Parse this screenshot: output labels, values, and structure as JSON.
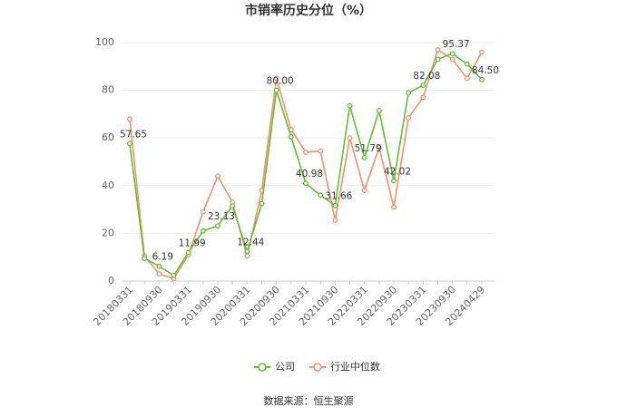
{
  "chart_data": {
    "type": "line",
    "title": "市销率历史分位（%）",
    "categories": [
      "20180331",
      null,
      "20180930",
      null,
      "20190331",
      null,
      "20190930",
      null,
      "20200331",
      null,
      "20200930",
      null,
      "20210331",
      null,
      "20210930",
      null,
      "20220331",
      null,
      "20220930",
      null,
      "20230331",
      null,
      "20230930",
      null,
      "20240429"
    ],
    "series": [
      {
        "name": "公司",
        "color": "#5ec12f",
        "values": [
          57.65,
          9.5,
          6.19,
          2.3,
          11.99,
          21,
          23.13,
          31.5,
          12.44,
          32.5,
          80.0,
          60.5,
          40.98,
          36,
          31.66,
          73.5,
          51.79,
          71.5,
          42.02,
          79,
          82.08,
          93,
          95.37,
          91,
          84.5
        ],
        "value_labels": [
          "57.65",
          null,
          "6.19",
          null,
          "11.99",
          null,
          "23.13",
          null,
          "12.44",
          null,
          "80.00",
          null,
          "40.98",
          null,
          "31.66",
          null,
          "51.79",
          null,
          "42.02",
          null,
          "82.08",
          null,
          "95.37",
          null,
          "84.50"
        ]
      },
      {
        "name": "行业中位数",
        "color": "#f5906a",
        "values": [
          68,
          10.5,
          3,
          1,
          11,
          29,
          44,
          33,
          10.5,
          38,
          85,
          63.5,
          54,
          54.5,
          25.5,
          60,
          38,
          56,
          31,
          68.5,
          77,
          97,
          93,
          85,
          96
        ]
      }
    ],
    "ylim": [
      0,
      100
    ],
    "yticks": [
      0,
      20,
      40,
      60,
      80,
      100
    ],
    "grid": true,
    "legend": "bottom",
    "source": "数据来源：恒生聚源"
  }
}
